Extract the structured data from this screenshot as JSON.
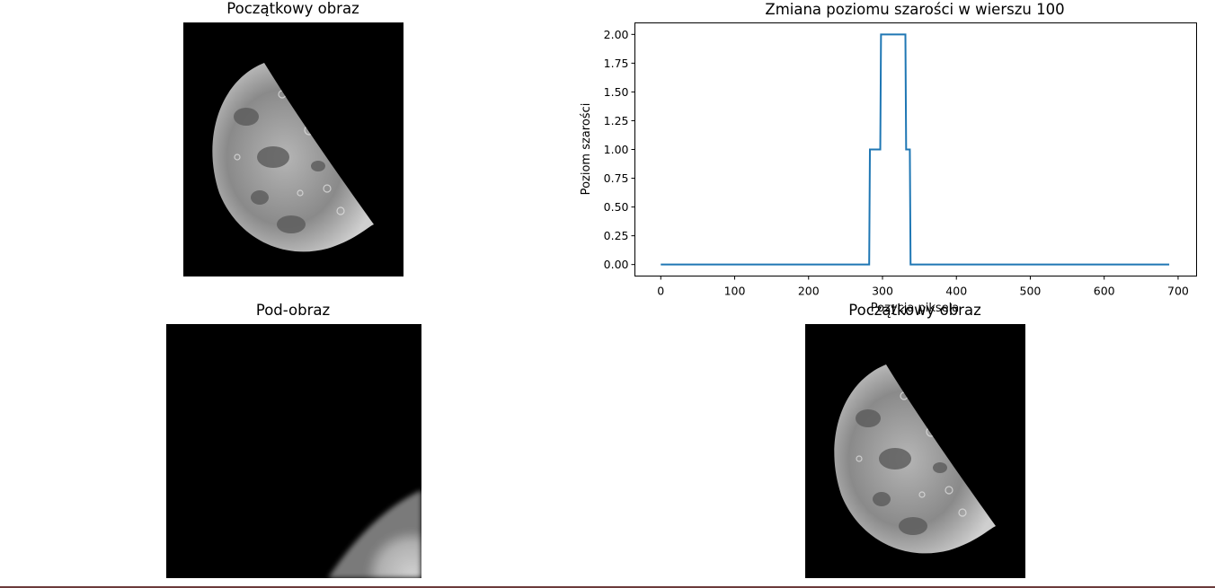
{
  "panels": {
    "top_left_title": "Początkowy obraz",
    "bottom_left_title": "Pod-obraz",
    "bottom_right_title": "Początkowy obraz"
  },
  "chart_data": {
    "type": "line",
    "title": "Zmiana poziomu szarości w wierszu 100",
    "xlabel": "Pozycja piksela",
    "ylabel": "Poziom szarości",
    "xlim": [
      -35,
      725
    ],
    "ylim": [
      -0.1,
      2.1
    ],
    "xticks": [
      0,
      100,
      200,
      300,
      400,
      500,
      600,
      700
    ],
    "yticks": [
      "0.00",
      "0.25",
      "0.50",
      "0.75",
      "1.00",
      "1.25",
      "1.50",
      "1.75",
      "2.00"
    ],
    "grid": false,
    "color": "#1f77b4",
    "series": [
      {
        "x": [
          0,
          282,
          283,
          297,
          298,
          331,
          332,
          337,
          338,
          688
        ],
        "y": [
          0,
          0,
          1,
          1,
          2,
          2,
          1,
          1,
          0,
          0
        ]
      }
    ]
  }
}
